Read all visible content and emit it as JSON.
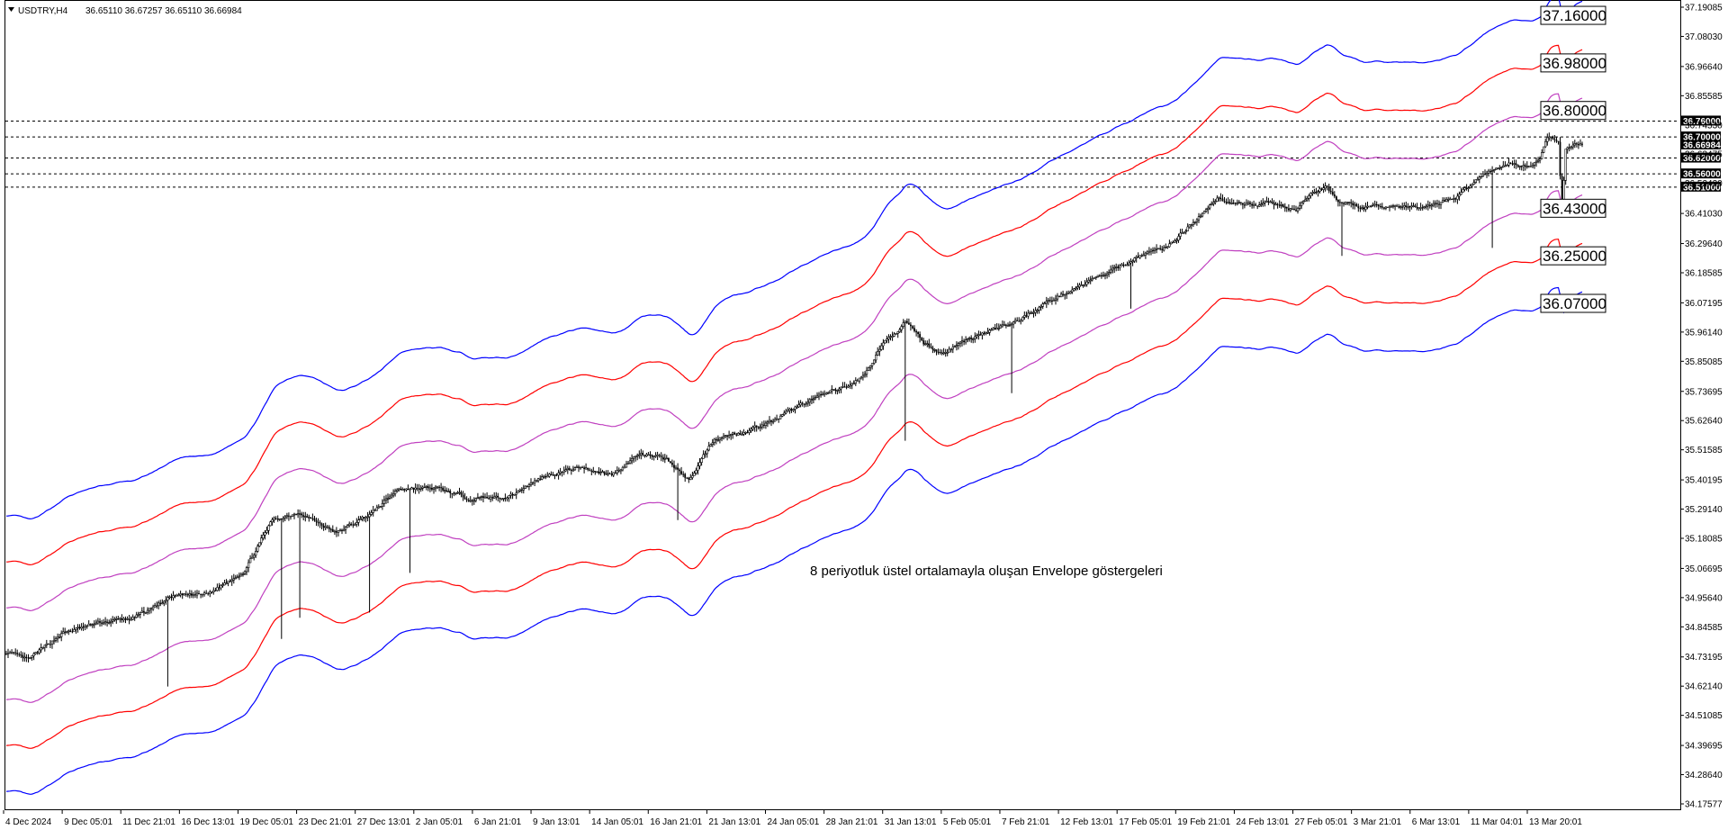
{
  "header": {
    "symbol_timeframe": "USDTRY,H4",
    "ohlc": "36.65110 36.67257 36.65110 36.66984"
  },
  "chart_data": {
    "type": "line",
    "title": "USDTRY,H4",
    "annotation": "8 periyotluk üstel ortalamayla oluşan Envelope göstergeleri",
    "ylim": [
      34.17577,
      37.19085
    ],
    "grid": false,
    "price_ticks": [
      "37.19085",
      "37.08030",
      "36.96640",
      "36.85585",
      "36.74530",
      "36.63475",
      "36.52420",
      "36.41030",
      "36.29640",
      "36.18585",
      "36.07195",
      "35.96140",
      "35.85085",
      "35.73695",
      "35.62640",
      "35.51585",
      "35.40195",
      "35.29140",
      "35.18085",
      "35.06695",
      "34.95640",
      "34.84585",
      "34.73195",
      "34.62140",
      "34.51085",
      "34.39695",
      "34.28640",
      "34.17577"
    ],
    "time_ticks": [
      "4 Dec 2024",
      "9 Dec 05:01",
      "11 Dec 21:01",
      "16 Dec 13:01",
      "19 Dec 05:01",
      "23 Dec 21:01",
      "27 Dec 13:01",
      "2 Jan 05:01",
      "6 Jan 21:01",
      "9 Jan 13:01",
      "14 Jan 05:01",
      "16 Jan 21:01",
      "21 Jan 13:01",
      "24 Jan 05:01",
      "28 Jan 21:01",
      "31 Jan 13:01",
      "5 Feb 05:01",
      "7 Feb 21:01",
      "12 Feb 13:01",
      "17 Feb 05:01",
      "19 Feb 21:01",
      "24 Feb 13:01",
      "27 Feb 05:01",
      "3 Mar 21:01",
      "6 Mar 13:01",
      "11 Mar 04:01",
      "13 Mar 20:01"
    ],
    "horizontal_levels": [
      {
        "price": 36.76,
        "label": "36.76000"
      },
      {
        "price": 36.7,
        "label": "36.70000"
      },
      {
        "price": 36.62,
        "label": "36.62000"
      },
      {
        "price": 36.56,
        "label": "36.56000"
      },
      {
        "price": 36.51,
        "label": "36.51000"
      }
    ],
    "current_price": {
      "price": 36.66984,
      "label": "36.66984"
    },
    "envelope_callouts": [
      {
        "label": "37.16000",
        "price": 37.16,
        "color": "#0000ff"
      },
      {
        "label": "36.98000",
        "price": 36.98,
        "color": "#ff0000"
      },
      {
        "label": "36.80000",
        "price": 36.8,
        "color": "#c040c0"
      },
      {
        "label": "36.43000",
        "price": 36.43,
        "color": "#c040c0"
      },
      {
        "label": "36.25000",
        "price": 36.25,
        "color": "#ff0000"
      },
      {
        "label": "36.07000",
        "price": 36.07,
        "color": "#0000ff"
      }
    ],
    "price_series": {
      "name": "",
      "knots": [
        [
          0,
          34.75
        ],
        [
          12,
          34.72
        ],
        [
          30,
          34.82
        ],
        [
          50,
          34.86
        ],
        [
          70,
          34.88
        ],
        [
          90,
          34.96
        ],
        [
          110,
          34.97
        ],
        [
          130,
          35.06
        ],
        [
          145,
          35.25
        ],
        [
          160,
          35.28
        ],
        [
          180,
          35.2
        ],
        [
          200,
          35.28
        ],
        [
          214,
          35.37
        ],
        [
          234,
          35.37
        ],
        [
          254,
          35.33
        ],
        [
          274,
          35.34
        ],
        [
          294,
          35.42
        ],
        [
          314,
          35.45
        ],
        [
          330,
          35.42
        ],
        [
          345,
          35.5
        ],
        [
          360,
          35.48
        ],
        [
          372,
          35.4
        ],
        [
          386,
          35.56
        ],
        [
          400,
          35.58
        ],
        [
          420,
          35.63
        ],
        [
          436,
          35.7
        ],
        [
          460,
          35.76
        ],
        [
          468,
          35.8
        ],
        [
          476,
          35.9
        ],
        [
          490,
          36.0
        ],
        [
          500,
          35.92
        ],
        [
          510,
          35.88
        ],
        [
          520,
          35.92
        ],
        [
          534,
          35.96
        ],
        [
          550,
          36.0
        ],
        [
          566,
          36.07
        ],
        [
          586,
          36.14
        ],
        [
          605,
          36.2
        ],
        [
          620,
          36.26
        ],
        [
          632,
          36.28
        ],
        [
          640,
          36.33
        ],
        [
          650,
          36.4
        ],
        [
          660,
          36.47
        ],
        [
          670,
          36.44
        ],
        [
          690,
          36.45
        ],
        [
          703,
          36.42
        ],
        [
          712,
          36.49
        ],
        [
          720,
          36.51
        ],
        [
          726,
          36.46
        ],
        [
          740,
          36.43
        ],
        [
          755,
          36.44
        ],
        [
          770,
          36.43
        ],
        [
          780,
          36.45
        ],
        [
          790,
          36.47
        ],
        [
          805,
          36.56
        ],
        [
          820,
          36.6
        ],
        [
          830,
          36.59
        ],
        [
          836,
          36.62
        ],
        [
          840,
          36.69
        ],
        [
          846,
          36.69
        ],
        [
          848,
          36.42
        ],
        [
          850,
          36.65
        ],
        [
          854,
          36.67
        ]
      ],
      "sweeps": [
        {
          "bar": 88,
          "low": 34.62
        },
        {
          "bar": 150,
          "low": 34.8
        },
        {
          "bar": 160,
          "low": 34.88
        },
        {
          "bar": 198,
          "low": 34.9
        },
        {
          "bar": 220,
          "low": 35.05
        },
        {
          "bar": 366,
          "low": 35.25
        },
        {
          "bar": 490,
          "low": 35.55
        },
        {
          "bar": 548,
          "low": 35.73
        },
        {
          "bar": 613,
          "low": 36.05
        },
        {
          "bar": 728,
          "low": 36.25
        },
        {
          "bar": 810,
          "low": 36.28
        }
      ]
    },
    "envelopes": {
      "period": 8,
      "method": "Exponential",
      "deviations_percent": [
        0.5,
        1.0,
        1.5
      ],
      "colors": [
        "#c040c0",
        "#ff0000",
        "#0000ff"
      ]
    }
  }
}
